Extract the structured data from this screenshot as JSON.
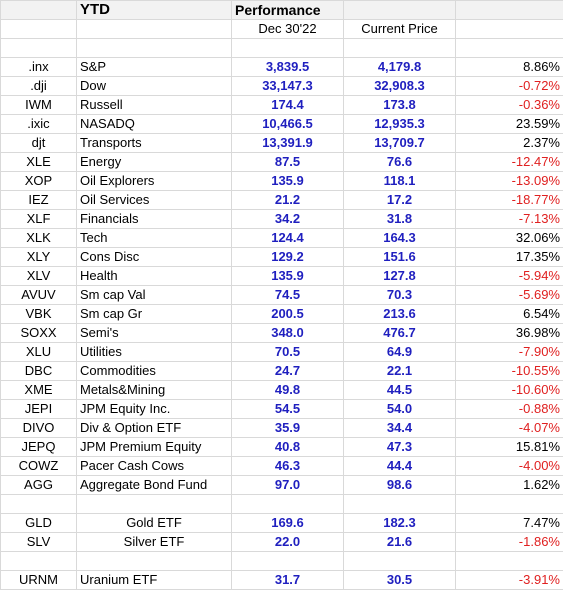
{
  "header": {
    "ytd": "YTD",
    "performance": "Performance",
    "col_dec": "Dec 30'22",
    "col_current": "Current Price"
  },
  "group1": [
    {
      "ticker": ".inx",
      "name": "S&P",
      "dec": "3,839.5",
      "current": "4,179.8",
      "pct": "8.86%",
      "neg": false
    },
    {
      "ticker": ".dji",
      "name": "Dow",
      "dec": "33,147.3",
      "current": "32,908.3",
      "pct": "-0.72%",
      "neg": true
    },
    {
      "ticker": "IWM",
      "name": "Russell",
      "dec": "174.4",
      "current": "173.8",
      "pct": "-0.36%",
      "neg": true
    },
    {
      "ticker": ".ixic",
      "name": "NASADQ",
      "dec": "10,466.5",
      "current": "12,935.3",
      "pct": "23.59%",
      "neg": false
    },
    {
      "ticker": "djt",
      "name": "Transports",
      "dec": "13,391.9",
      "current": "13,709.7",
      "pct": "2.37%",
      "neg": false
    },
    {
      "ticker": "XLE",
      "name": "Energy",
      "dec": "87.5",
      "current": "76.6",
      "pct": "-12.47%",
      "neg": true
    },
    {
      "ticker": "XOP",
      "name": "Oil Explorers",
      "dec": "135.9",
      "current": "118.1",
      "pct": "-13.09%",
      "neg": true
    },
    {
      "ticker": "IEZ",
      "name": "Oil Services",
      "dec": "21.2",
      "current": "17.2",
      "pct": "-18.77%",
      "neg": true
    },
    {
      "ticker": "XLF",
      "name": "Financials",
      "dec": "34.2",
      "current": "31.8",
      "pct": "-7.13%",
      "neg": true
    },
    {
      "ticker": "XLK",
      "name": "Tech",
      "dec": "124.4",
      "current": "164.3",
      "pct": "32.06%",
      "neg": false
    },
    {
      "ticker": "XLY",
      "name": "Cons Disc",
      "dec": "129.2",
      "current": "151.6",
      "pct": "17.35%",
      "neg": false
    },
    {
      "ticker": "XLV",
      "name": "Health",
      "dec": "135.9",
      "current": "127.8",
      "pct": "-5.94%",
      "neg": true
    },
    {
      "ticker": "AVUV",
      "name": "Sm cap Val",
      "dec": "74.5",
      "current": "70.3",
      "pct": "-5.69%",
      "neg": true
    },
    {
      "ticker": "VBK",
      "name": "Sm cap Gr",
      "dec": "200.5",
      "current": "213.6",
      "pct": "6.54%",
      "neg": false
    },
    {
      "ticker": "SOXX",
      "name": "Semi's",
      "dec": "348.0",
      "current": "476.7",
      "pct": "36.98%",
      "neg": false
    },
    {
      "ticker": "XLU",
      "name": "Utilities",
      "dec": "70.5",
      "current": "64.9",
      "pct": "-7.90%",
      "neg": true
    },
    {
      "ticker": "DBC",
      "name": "Commodities",
      "dec": "24.7",
      "current": "22.1",
      "pct": "-10.55%",
      "neg": true
    },
    {
      "ticker": "XME",
      "name": "Metals&Mining",
      "dec": "49.8",
      "current": "44.5",
      "pct": "-10.60%",
      "neg": true
    },
    {
      "ticker": "JEPI",
      "name": "JPM  Equity Inc.",
      "dec": "54.5",
      "current": "54.0",
      "pct": "-0.88%",
      "neg": true
    },
    {
      "ticker": "DIVO",
      "name": "Div & Option ETF",
      "dec": "35.9",
      "current": "34.4",
      "pct": "-4.07%",
      "neg": true
    },
    {
      "ticker": "JEPQ",
      "name": "JPM  Premium Equity",
      "dec": "40.8",
      "current": "47.3",
      "pct": "15.81%",
      "neg": false
    },
    {
      "ticker": "COWZ",
      "name": "Pacer Cash Cows",
      "dec": "46.3",
      "current": "44.4",
      "pct": "-4.00%",
      "neg": true
    },
    {
      "ticker": "AGG",
      "name": "Aggregate Bond Fund",
      "dec": "97.0",
      "current": "98.6",
      "pct": "1.62%",
      "neg": false
    }
  ],
  "group2": [
    {
      "ticker": "GLD",
      "name": "Gold ETF",
      "dec": "169.6",
      "current": "182.3",
      "pct": "7.47%",
      "neg": false
    },
    {
      "ticker": "SLV",
      "name": "Silver ETF",
      "dec": "22.0",
      "current": "21.6",
      "pct": "-1.86%",
      "neg": true
    }
  ],
  "group3": [
    {
      "ticker": "URNM",
      "name": "Uranium ETF",
      "dec": "31.7",
      "current": "30.5",
      "pct": "-3.91%",
      "neg": true
    }
  ],
  "colors": {
    "value": "#1f1fbf",
    "negative": "#e02020",
    "header_bg": "#f2f2f2"
  }
}
